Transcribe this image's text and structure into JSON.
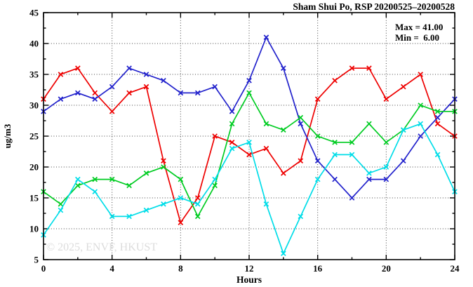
{
  "header": {
    "title": "Sham Shui Po, RSP 20200525–20200528"
  },
  "annotations": {
    "max_label": "Max = 41.00",
    "min_label": "Min =  6.00"
  },
  "watermark": {
    "text": "© 2025, ENVF, HKUST",
    "color": "#dcdcdc"
  },
  "chart_data": {
    "type": "line",
    "title": "Sham Shui Po, RSP 20200525–20200528",
    "xlabel": "Hours",
    "ylabel": "ug/m3",
    "xlim": [
      0,
      24
    ],
    "ylim": [
      5,
      45
    ],
    "x_major_ticks": [
      0,
      4,
      8,
      12,
      16,
      20,
      24
    ],
    "x_minor_step": 2,
    "y_major_ticks": [
      5,
      10,
      15,
      20,
      25,
      30,
      35,
      40,
      45
    ],
    "y_minor_step": 2.5,
    "grid": true,
    "legend_position": "top-right-inside",
    "max_value": 41.0,
    "min_value": 6.0,
    "x": [
      0,
      1,
      2,
      3,
      4,
      5,
      6,
      7,
      8,
      9,
      10,
      11,
      12,
      13,
      14,
      15,
      16,
      17,
      18,
      19,
      20,
      21,
      22,
      23,
      24
    ],
    "series": [
      {
        "name": "series-red",
        "color": "#ee0000",
        "values": [
          31,
          35,
          36,
          32,
          29,
          32,
          33,
          21,
          11,
          15,
          25,
          24,
          22,
          23,
          19,
          21,
          31,
          34,
          36,
          36,
          31,
          33,
          35,
          27,
          25
        ]
      },
      {
        "name": "series-blue",
        "color": "#2222cc",
        "values": [
          29,
          31,
          32,
          31,
          33,
          36,
          35,
          34,
          32,
          32,
          33,
          29,
          34,
          41,
          36,
          27,
          21,
          18,
          15,
          18,
          18,
          21,
          25,
          28,
          31
        ]
      },
      {
        "name": "series-green",
        "color": "#00cc22",
        "values": [
          16,
          14,
          17,
          18,
          18,
          17,
          19,
          20,
          18,
          12,
          17,
          27,
          32,
          27,
          26,
          28,
          25,
          24,
          24,
          27,
          24,
          26,
          30,
          29,
          29
        ]
      },
      {
        "name": "series-cyan",
        "color": "#00dde8",
        "values": [
          9,
          13,
          18,
          16,
          12,
          12,
          13,
          14,
          15,
          14,
          18,
          23,
          24,
          14,
          6,
          12,
          18,
          22,
          22,
          19,
          20,
          26,
          27,
          22,
          16
        ]
      }
    ]
  }
}
